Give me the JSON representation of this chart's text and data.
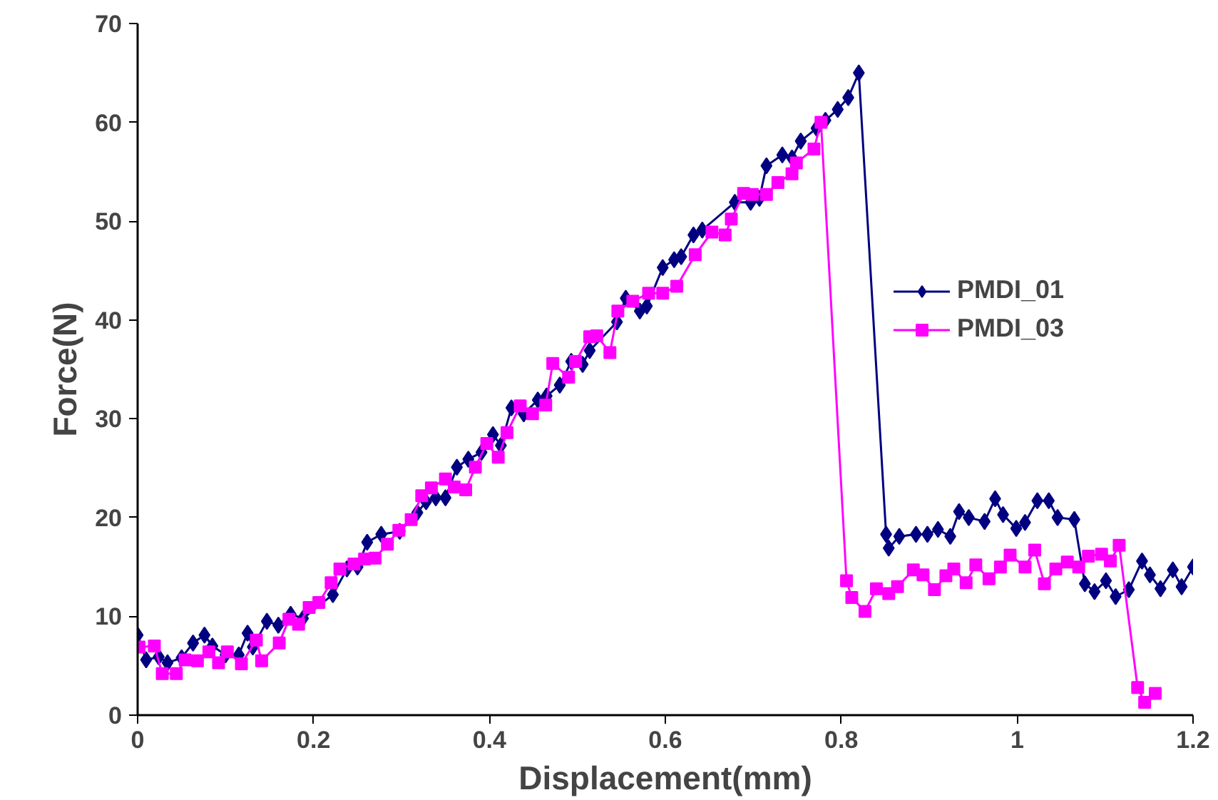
{
  "chart_data": {
    "type": "line",
    "xlabel": "Displacement(mm)",
    "ylabel": "Force(N)",
    "xlim": [
      0,
      1.2
    ],
    "ylim": [
      0,
      70
    ],
    "xticks": [
      0,
      0.2,
      0.4,
      0.6,
      0.8,
      1,
      1.2
    ],
    "yticks": [
      0,
      10,
      20,
      30,
      40,
      50,
      60,
      70
    ],
    "grid": false,
    "legend": "right",
    "line_style": "solid",
    "series": [
      {
        "name": "PMDI_01",
        "color": "#000080",
        "marker": "diamond",
        "x": [
          0,
          0.0097,
          0.024,
          0.034,
          0.05,
          0.063,
          0.076,
          0.085,
          0.1,
          0.115,
          0.125,
          0.131,
          0.147,
          0.16,
          0.174,
          0.188,
          0.222,
          0.238,
          0.25,
          0.261,
          0.277,
          0.298,
          0.318,
          0.328,
          0.339,
          0.35,
          0.363,
          0.376,
          0.391,
          0.404,
          0.413,
          0.425,
          0.439,
          0.455,
          0.465,
          0.48,
          0.493,
          0.506,
          0.514,
          0.545,
          0.555,
          0.571,
          0.579,
          0.597,
          0.61,
          0.618,
          0.632,
          0.642,
          0.679,
          0.697,
          0.707,
          0.715,
          0.733,
          0.744,
          0.754,
          0.772,
          0.782,
          0.796,
          0.808,
          0.82,
          0.851,
          0.854,
          0.866,
          0.885,
          0.898,
          0.91,
          0.924,
          0.934,
          0.945,
          0.963,
          0.975,
          0.984,
          0.999,
          1.009,
          1.023,
          1.036,
          1.046,
          1.065,
          1.077,
          1.088,
          1.101,
          1.112,
          1.127,
          1.142,
          1.151,
          1.163,
          1.177,
          1.187,
          1.2
        ],
        "values": [
          8.1,
          5.6,
          5.9,
          5.3,
          5.8,
          7.3,
          8.1,
          7.0,
          6.1,
          6.1,
          8.3,
          6.9,
          9.5,
          9.1,
          10.2,
          9.8,
          12.2,
          14.8,
          15.0,
          17.5,
          18.3,
          18.6,
          20.5,
          21.6,
          22.0,
          22.0,
          25.1,
          25.9,
          26.6,
          28.4,
          27.3,
          31.1,
          30.5,
          31.9,
          32.3,
          33.4,
          35.8,
          35.5,
          36.9,
          39.8,
          42.2,
          40.9,
          41.4,
          45.3,
          46.1,
          46.4,
          48.6,
          49.1,
          51.9,
          51.9,
          52.3,
          55.6,
          56.7,
          56.4,
          58.1,
          59.4,
          60.2,
          61.3,
          62.5,
          65.0,
          18.3,
          16.9,
          18.1,
          18.3,
          18.3,
          18.8,
          18.1,
          20.6,
          20.0,
          19.6,
          21.9,
          20.3,
          18.9,
          19.5,
          21.7,
          21.7,
          20.0,
          19.8,
          13.3,
          12.5,
          13.6,
          12.0,
          12.7,
          15.6,
          14.2,
          12.8,
          14.7,
          13.0,
          15.0
        ]
      },
      {
        "name": "PMDI_03",
        "color": "#ff00ff",
        "marker": "square",
        "x": [
          0.0016,
          0.019,
          0.028,
          0.044,
          0.054,
          0.068,
          0.081,
          0.092,
          0.102,
          0.118,
          0.135,
          0.141,
          0.161,
          0.172,
          0.183,
          0.195,
          0.206,
          0.22,
          0.23,
          0.246,
          0.258,
          0.27,
          0.284,
          0.297,
          0.311,
          0.323,
          0.334,
          0.35,
          0.36,
          0.373,
          0.384,
          0.397,
          0.41,
          0.42,
          0.435,
          0.449,
          0.464,
          0.472,
          0.49,
          0.498,
          0.514,
          0.522,
          0.537,
          0.546,
          0.563,
          0.581,
          0.597,
          0.613,
          0.634,
          0.653,
          0.668,
          0.675,
          0.689,
          0.699,
          0.715,
          0.728,
          0.744,
          0.749,
          0.769,
          0.777,
          0.806,
          0.812,
          0.827,
          0.84,
          0.854,
          0.864,
          0.882,
          0.893,
          0.906,
          0.919,
          0.928,
          0.942,
          0.953,
          0.968,
          0.981,
          0.992,
          1.009,
          1.02,
          1.031,
          1.044,
          1.057,
          1.07,
          1.081,
          1.096,
          1.106,
          1.116,
          1.137,
          1.145,
          1.157
        ],
        "values": [
          6.9,
          7.0,
          4.2,
          4.2,
          5.6,
          5.5,
          6.4,
          5.3,
          6.4,
          5.2,
          7.6,
          5.5,
          7.3,
          9.7,
          9.2,
          10.9,
          11.4,
          13.4,
          14.8,
          15.3,
          15.8,
          15.9,
          17.3,
          18.7,
          19.8,
          22.2,
          23.0,
          23.9,
          23.1,
          22.8,
          25.1,
          27.5,
          26.1,
          28.6,
          31.3,
          30.5,
          31.4,
          35.6,
          34.2,
          35.8,
          38.3,
          38.4,
          36.7,
          40.9,
          41.9,
          42.7,
          42.7,
          43.4,
          46.6,
          48.9,
          48.6,
          50.2,
          52.8,
          52.7,
          52.7,
          53.9,
          54.8,
          55.9,
          57.3,
          60.0,
          13.6,
          11.9,
          10.5,
          12.8,
          12.3,
          13.0,
          14.7,
          14.2,
          12.7,
          14.1,
          14.8,
          13.4,
          15.2,
          13.8,
          15.0,
          16.2,
          15.0,
          16.7,
          13.3,
          14.8,
          15.5,
          15.0,
          16.1,
          16.3,
          15.6,
          17.2,
          2.8,
          1.3,
          2.2
        ]
      }
    ]
  }
}
